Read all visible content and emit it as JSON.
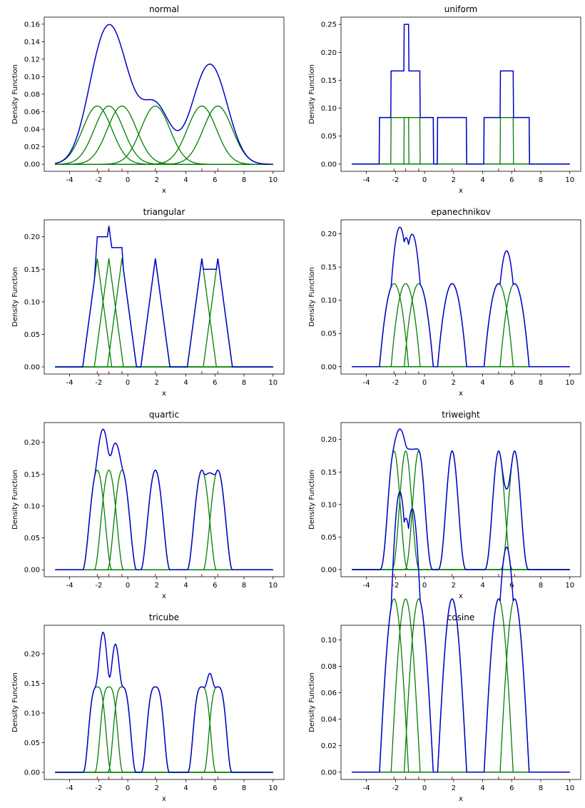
{
  "figure": {
    "x_domain": [
      -5,
      10
    ],
    "x_ticks": [
      -4,
      -2,
      0,
      2,
      4,
      6,
      8,
      10
    ],
    "xlabel": "x",
    "ylabel": "Density Function",
    "sample_points": [
      -2.1,
      -1.3,
      -0.4,
      1.9,
      5.1,
      6.2
    ],
    "colors": {
      "total": "#0000cc",
      "component": "#008000",
      "rug": "#cc0000",
      "axes": "#000000"
    }
  },
  "chart_data": [
    {
      "type": "line",
      "title": "normal",
      "kernel": "normal",
      "bandwidth": 1.0,
      "ylim": [
        -0.008,
        0.168
      ],
      "y_ticks": [
        0.0,
        0.02,
        0.04,
        0.06,
        0.08,
        0.1,
        0.12,
        0.14,
        0.16
      ],
      "y_tick_labels": [
        "0.00",
        "0.02",
        "0.04",
        "0.06",
        "0.08",
        "0.10",
        "0.12",
        "0.14",
        "0.16"
      ]
    },
    {
      "type": "line",
      "title": "uniform",
      "kernel": "uniform",
      "bandwidth": 1.0,
      "ylim": [
        -0.013,
        0.263
      ],
      "y_ticks": [
        0.0,
        0.05,
        0.1,
        0.15,
        0.2,
        0.25
      ],
      "y_tick_labels": [
        "0.00",
        "0.05",
        "0.10",
        "0.15",
        "0.20",
        "0.25"
      ]
    },
    {
      "type": "line",
      "title": "triangular",
      "kernel": "triangular",
      "bandwidth": 1.0,
      "ylim": [
        -0.011,
        0.226
      ],
      "y_ticks": [
        0.0,
        0.05,
        0.1,
        0.15,
        0.2
      ],
      "y_tick_labels": [
        "0.00",
        "0.05",
        "0.10",
        "0.15",
        "0.20"
      ]
    },
    {
      "type": "line",
      "title": "epanechnikov",
      "kernel": "epanechnikov",
      "bandwidth": 1.0,
      "ylim": [
        -0.011,
        0.221
      ],
      "y_ticks": [
        0.0,
        0.05,
        0.1,
        0.15,
        0.2
      ],
      "y_tick_labels": [
        "0.00",
        "0.05",
        "0.10",
        "0.15",
        "0.20"
      ]
    },
    {
      "type": "line",
      "title": "quartic",
      "kernel": "quartic",
      "bandwidth": 1.0,
      "ylim": [
        -0.011,
        0.231
      ],
      "y_ticks": [
        0.0,
        0.05,
        0.1,
        0.15,
        0.2
      ],
      "y_tick_labels": [
        "0.00",
        "0.05",
        "0.10",
        "0.15",
        "0.20"
      ]
    },
    {
      "type": "line",
      "title": "triweight",
      "kernel": "triweight",
      "bandwidth": 1.0,
      "ylim": [
        -0.011,
        0.226
      ],
      "y_ticks": [
        0.0,
        0.05,
        0.1,
        0.15,
        0.2
      ],
      "y_tick_labels": [
        "0.00",
        "0.05",
        "0.10",
        "0.15",
        "0.20"
      ]
    },
    {
      "type": "line",
      "title": "tricube",
      "kernel": "tricube",
      "bandwidth": 1.0,
      "ylim": [
        -0.012,
        0.248
      ],
      "y_ticks": [
        0.0,
        0.05,
        0.1,
        0.15,
        0.2
      ],
      "y_tick_labels": [
        "0.00",
        "0.05",
        "0.10",
        "0.15",
        "0.20"
      ]
    },
    {
      "type": "line",
      "title": "cosine",
      "kernel": "cosine",
      "bandwidth": 1.0,
      "ylim": [
        -0.0055,
        0.111
      ],
      "y_ticks": [
        0.0,
        0.02,
        0.04,
        0.06,
        0.08,
        0.1
      ],
      "y_tick_labels": [
        "0.00",
        "0.02",
        "0.04",
        "0.06",
        "0.08",
        "0.10"
      ]
    }
  ]
}
